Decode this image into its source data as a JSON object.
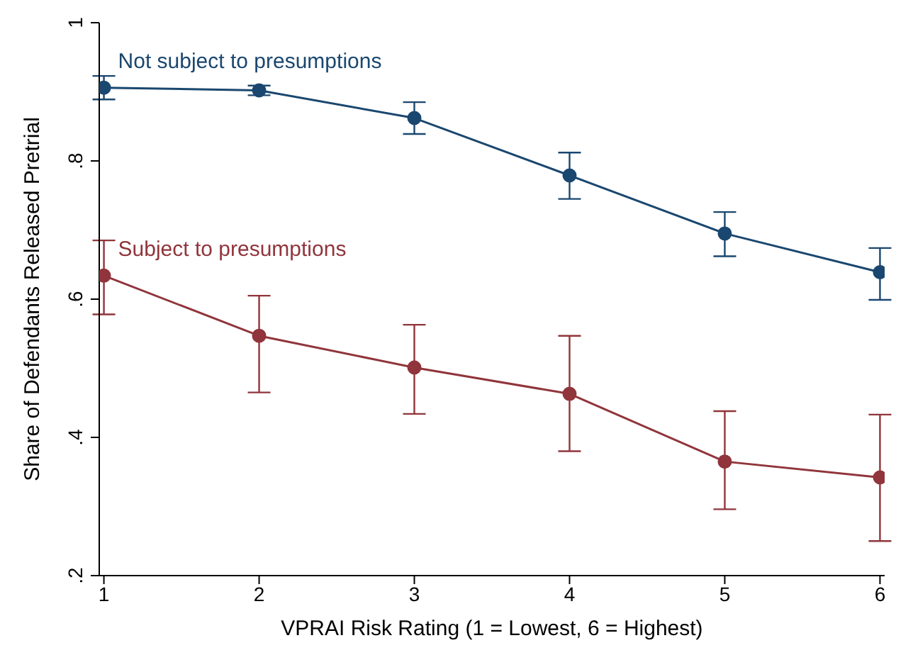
{
  "chart_data": {
    "type": "line",
    "xlabel": "VPRAI Risk Rating (1 = Lowest, 6 = Highest)",
    "ylabel": "Share of Defendants Released Pretrial",
    "x": [
      1,
      2,
      3,
      4,
      5,
      6
    ],
    "xlim": [
      0.97,
      6.03
    ],
    "xticks": [
      1,
      2,
      3,
      4,
      5,
      6
    ],
    "ylim": [
      0.2,
      1
    ],
    "yticks": [
      {
        "value": 0.2,
        "label": ".2"
      },
      {
        "value": 0.4,
        "label": ".4"
      },
      {
        "value": 0.6,
        "label": ".6"
      },
      {
        "value": 0.8,
        "label": ".8"
      },
      1
    ],
    "grid": false,
    "legend": false,
    "marker": "circle",
    "line_style": "solid",
    "series": [
      {
        "name": "Not subject to presumptions",
        "color": "#1a476f",
        "values": [
          0.906,
          0.902,
          0.862,
          0.779,
          0.695,
          0.639
        ],
        "errors": [
          [
            0.889,
            0.923
          ],
          [
            0.895,
            0.909
          ],
          [
            0.839,
            0.885
          ],
          [
            0.745,
            0.812
          ],
          [
            0.662,
            0.726
          ],
          [
            0.599,
            0.674
          ]
        ]
      },
      {
        "name": "Subject to presumptions",
        "color": "#90353b",
        "values": [
          0.634,
          0.547,
          0.501,
          0.463,
          0.365,
          0.342
        ],
        "errors": [
          [
            0.578,
            0.685
          ],
          [
            0.465,
            0.605
          ],
          [
            0.434,
            0.563
          ],
          [
            0.38,
            0.547
          ],
          [
            0.296,
            0.438
          ],
          [
            0.25,
            0.433
          ]
        ]
      }
    ]
  }
}
